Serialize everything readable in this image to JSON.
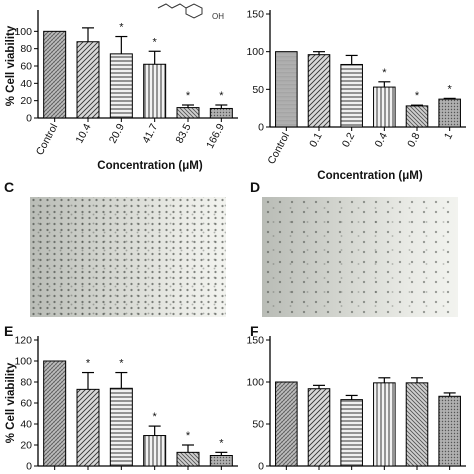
{
  "panels": [
    {
      "letter": "",
      "ylabel": "% Cell viability",
      "xlabel": "Concentration (μM)"
    },
    {
      "letter": "",
      "ylabel": "",
      "xlabel": "Concentration (μM)"
    },
    {
      "letter": "C"
    },
    {
      "letter": "D"
    },
    {
      "letter": "E",
      "ylabel": "% Cell viability",
      "xlabel": ""
    },
    {
      "letter": "F",
      "ylabel": "",
      "xlabel": ""
    }
  ],
  "structure_label": "OH",
  "chart_data": [
    {
      "type": "bar",
      "title": "",
      "xlabel": "Concentration (μM)",
      "ylabel": "% Cell viability",
      "ylim": [
        0,
        120
      ],
      "yticks": [
        0,
        20,
        40,
        60,
        80,
        100
      ],
      "categories": [
        "Control",
        "10.4",
        "20.9",
        "41.7",
        "83.5",
        "166.9"
      ],
      "values": [
        100,
        88,
        74,
        62,
        12,
        11
      ],
      "errors": [
        0,
        16,
        20,
        15,
        3,
        4
      ],
      "significance": [
        "",
        "",
        "*",
        "*",
        "*",
        "*"
      ],
      "grid": false
    },
    {
      "type": "bar",
      "title": "",
      "xlabel": "Concentration (μM)",
      "ylabel": "",
      "ylim": [
        0,
        150
      ],
      "yticks": [
        0,
        50,
        100,
        150
      ],
      "categories": [
        "Control",
        "0.1",
        "0.2",
        "0.4",
        "0.8",
        "1"
      ],
      "values": [
        100,
        96,
        83,
        53,
        28,
        37
      ],
      "errors": [
        0,
        4,
        12,
        7,
        1,
        1
      ],
      "significance": [
        "",
        "",
        "",
        "*",
        "*",
        "*"
      ],
      "grid": false
    },
    {
      "type": "bar",
      "title": "",
      "xlabel": "",
      "ylabel": "% Cell viability",
      "ylim": [
        0,
        120
      ],
      "yticks": [
        0,
        20,
        40,
        60,
        80,
        100,
        120
      ],
      "categories": [
        "",
        "",
        "",
        "",
        "",
        ""
      ],
      "values": [
        100,
        73,
        74,
        29,
        13,
        10
      ],
      "errors": [
        0,
        16,
        15,
        9,
        7,
        3
      ],
      "significance": [
        "",
        "*",
        "*",
        "*",
        "*",
        "*"
      ],
      "grid": false
    },
    {
      "type": "bar",
      "title": "",
      "xlabel": "",
      "ylabel": "",
      "ylim": [
        0,
        150
      ],
      "yticks": [
        0,
        50,
        100,
        150
      ],
      "categories": [
        "",
        "",
        "",
        "",
        "",
        ""
      ],
      "values": [
        100,
        92,
        79,
        99,
        99,
        83
      ],
      "errors": [
        0,
        4,
        5,
        6,
        6,
        4
      ],
      "significance": [
        "",
        "",
        "",
        "",
        "",
        ""
      ],
      "grid": false
    }
  ]
}
